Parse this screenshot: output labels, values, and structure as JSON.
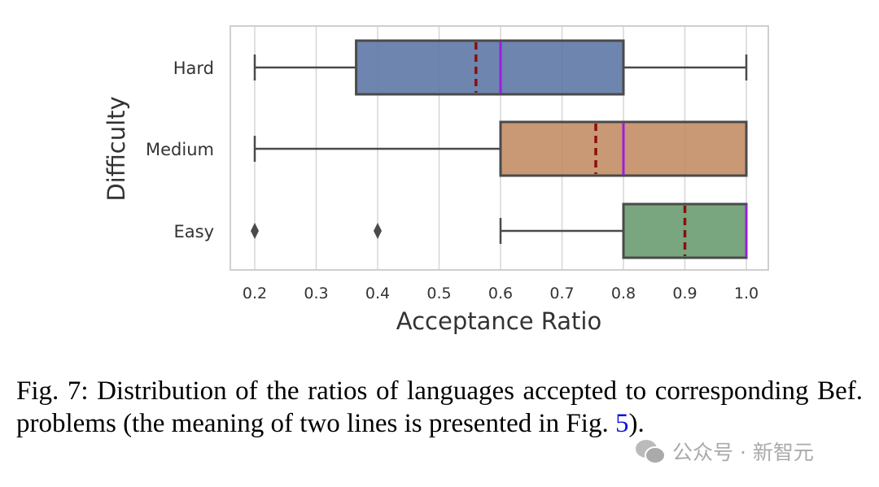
{
  "chart_data": {
    "type": "boxplot",
    "xlabel": "Acceptance Ratio",
    "ylabel": "Difficulty",
    "xlim": [
      0.16,
      1.04
    ],
    "xticks": [
      "0.2",
      "0.3",
      "0.4",
      "0.5",
      "0.6",
      "0.7",
      "0.8",
      "0.9",
      "1.0"
    ],
    "grid": "vertical",
    "series": [
      {
        "name": "Hard",
        "whisker_low": 0.2,
        "q1": 0.365,
        "median": 0.6,
        "mean": 0.56,
        "q3": 0.8,
        "whisker_high": 1.0,
        "outliers": [],
        "color": "#5a74a4"
      },
      {
        "name": "Medium",
        "whisker_low": 0.2,
        "q1": 0.6,
        "median": 0.8,
        "mean": 0.755,
        "q3": 1.0,
        "whisker_high": 1.0,
        "outliers": [],
        "color": "#c18a62"
      },
      {
        "name": "Easy",
        "whisker_low": 0.6,
        "q1": 0.8,
        "median": 1.0,
        "mean": 0.9,
        "q3": 1.0,
        "whisker_high": 1.0,
        "outliers": [
          0.2,
          0.4
        ],
        "color": "#669a6c"
      }
    ],
    "median_color": "#9b1ee0",
    "mean_color": "#8b0f0f"
  },
  "caption": {
    "prefix": "Fig. 7: Distribution of the ratios of languages accepted to corresponding Bef. problems (the meaning of two lines is presented in Fig. ",
    "ref": "5",
    "suffix": ")."
  },
  "watermark": "公众号 · 新智元"
}
